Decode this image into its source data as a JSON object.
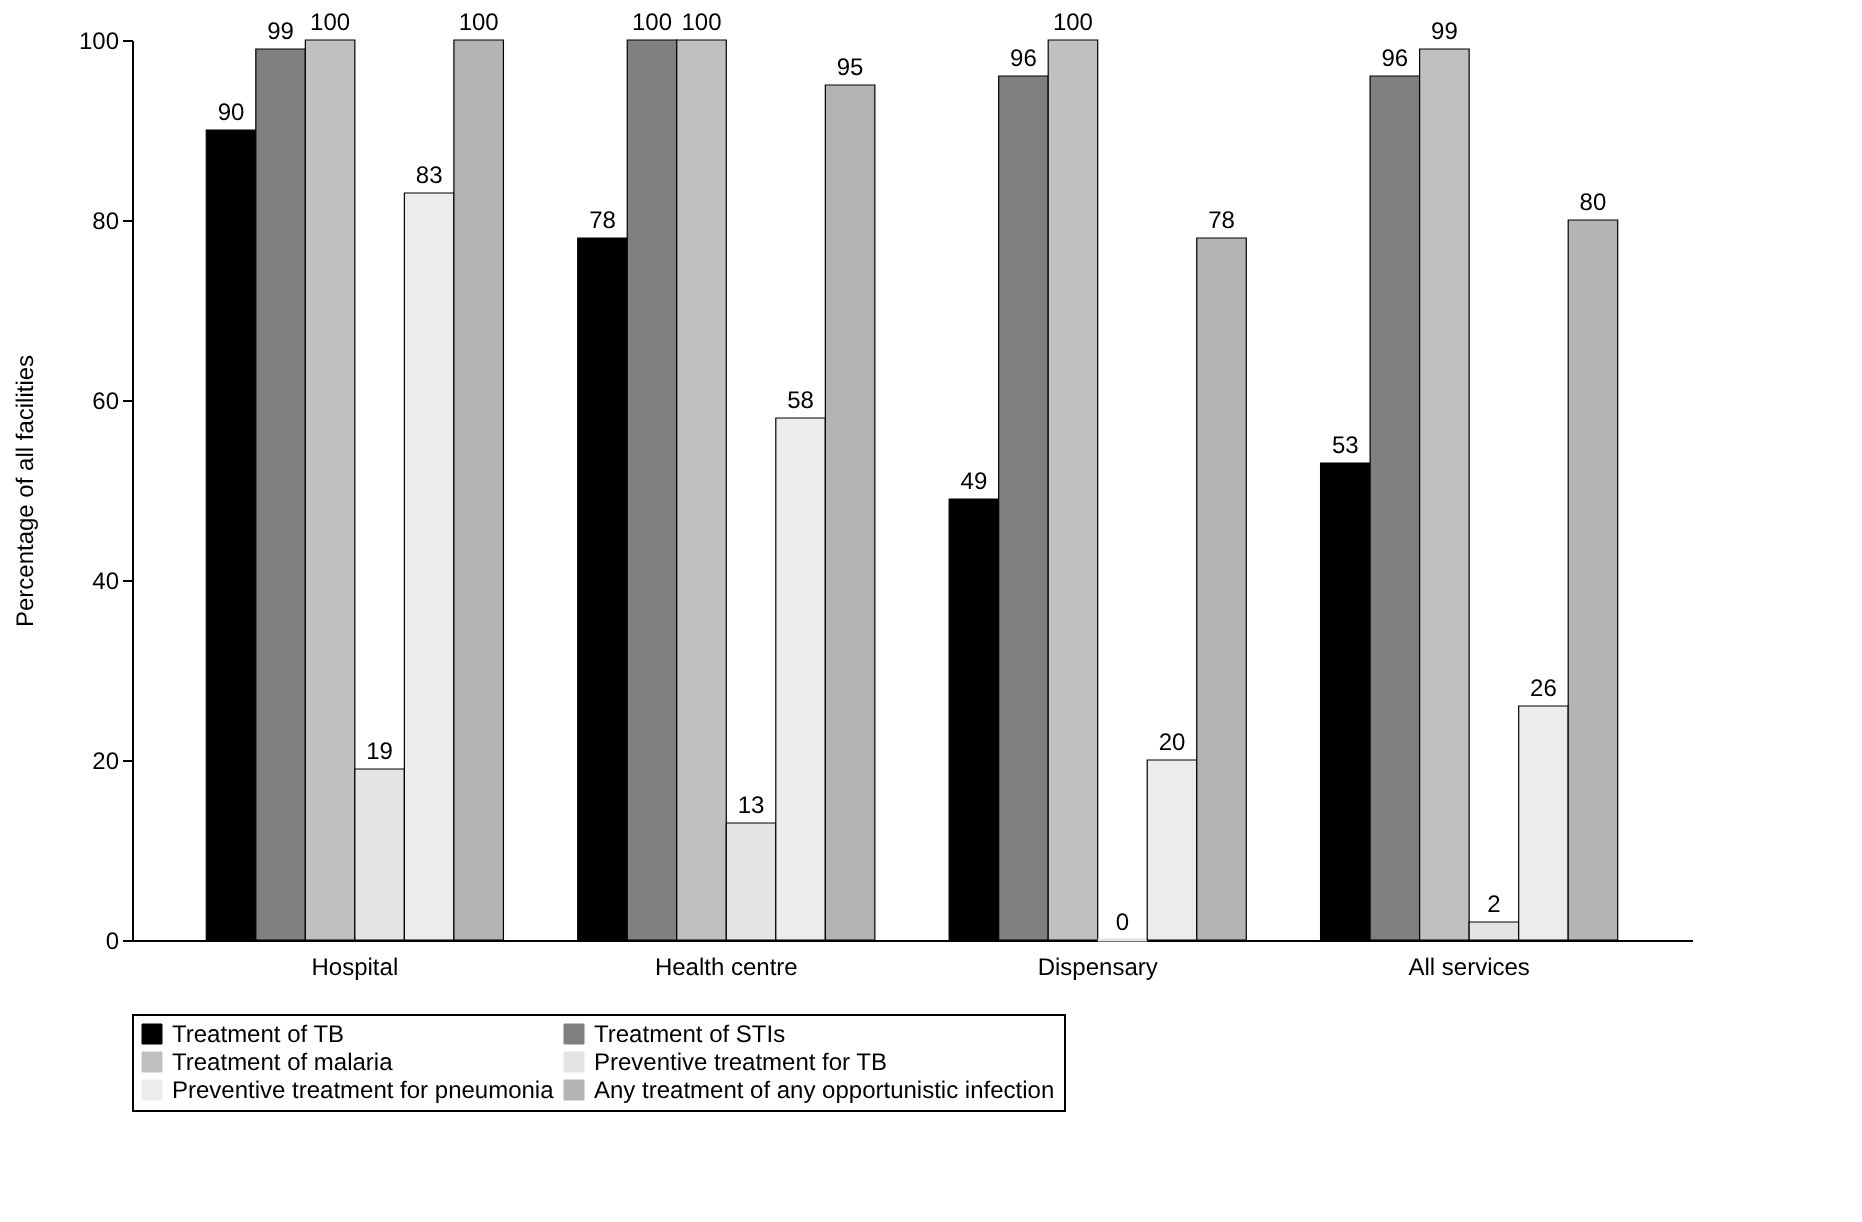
{
  "chart_data": {
    "type": "bar",
    "ylabel": "Percentage of  all facilities",
    "categories": [
      "Hospital",
      "Health centre",
      "Dispensary",
      "All services"
    ],
    "series": [
      {
        "name": "Treatment of TB",
        "color": "#000000",
        "values": [
          90,
          78,
          49,
          53
        ]
      },
      {
        "name": "Treatment of STIs",
        "color": "#808080",
        "values": [
          99,
          100,
          96,
          96
        ]
      },
      {
        "name": "Treatment of malaria",
        "color": "#c0c0c0",
        "values": [
          100,
          100,
          100,
          99
        ]
      },
      {
        "name": "Preventive treatment for TB",
        "color": "#e4e4e4",
        "values": [
          19,
          13,
          0,
          2
        ]
      },
      {
        "name": "Preventive treatment for pneumonia",
        "color": "#ececec",
        "values": [
          83,
          58,
          20,
          26
        ]
      },
      {
        "name": "Any treatment of any opportunistic infection",
        "color": "#b4b4b4",
        "values": [
          100,
          95,
          78,
          80
        ]
      }
    ],
    "ylim": [
      0,
      100
    ],
    "yticks": [
      0,
      20,
      40,
      60,
      80,
      100
    ],
    "grid": false,
    "legend": "bottom",
    "data_labels": true
  }
}
